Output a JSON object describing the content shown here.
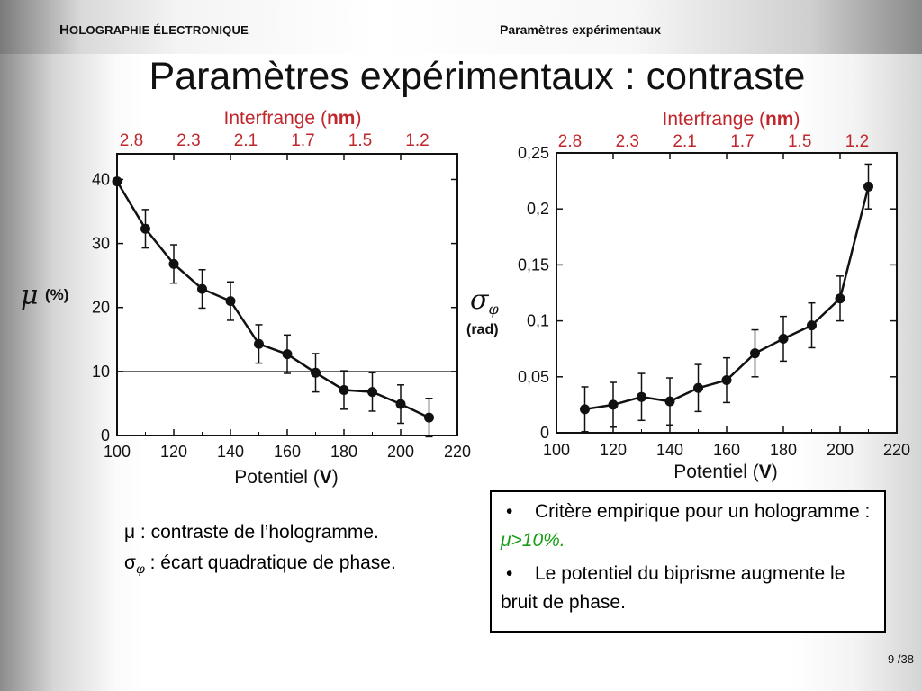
{
  "header": {
    "left_cap": "H",
    "left_rest": "OLOGRAPHIE ÉLECTRONIQUE",
    "right": "Paramètres expérimentaux"
  },
  "title": "Paramètres expérimentaux : contraste",
  "chart_data": [
    {
      "type": "line",
      "top_axis_title": "Interfrange (nm)",
      "top_axis_title_prefix": "Interfrange (",
      "top_axis_title_bold": "nm",
      "top_axis_title_suffix": ")",
      "top_ticks": [
        "2.8",
        "2.3",
        "2.1",
        "1.7",
        "1.5",
        "1.2"
      ],
      "xlabel": "Potentiel (V)",
      "xlabel_prefix": "Potentiel (",
      "xlabel_bold": "V",
      "xlabel_suffix": ")",
      "ylabel_symbol": "μ",
      "ylabel_unit": "(%)",
      "xlim": [
        100,
        220
      ],
      "ylim": [
        0,
        44
      ],
      "xticks": [
        "100",
        "120",
        "140",
        "160",
        "180",
        "200",
        "220"
      ],
      "yticks": [
        "0",
        "10",
        "20",
        "30",
        "40"
      ],
      "threshold_line": 10,
      "series": [
        {
          "x": [
            100,
            110,
            120,
            130,
            140,
            150,
            160,
            170,
            180,
            190,
            200,
            210
          ],
          "y": [
            39.7,
            32.3,
            26.8,
            22.9,
            21,
            14.3,
            12.7,
            9.8,
            7.1,
            6.8,
            4.9,
            2.8
          ],
          "err": [
            0,
            3,
            3,
            3,
            3,
            3,
            3,
            3,
            3,
            3,
            3,
            3
          ]
        }
      ]
    },
    {
      "type": "line",
      "top_axis_title": "Interfrange (nm)",
      "top_axis_title_prefix": "Interfrange (",
      "top_axis_title_bold": "nm",
      "top_axis_title_suffix": ")",
      "top_ticks": [
        "2.8",
        "2.3",
        "2.1",
        "1.7",
        "1.5",
        "1.2"
      ],
      "xlabel": "Potentiel (V)",
      "xlabel_prefix": "Potentiel (",
      "xlabel_bold": "V",
      "xlabel_suffix": ")",
      "ylabel_symbol": "σ",
      "ylabel_sub": "φ",
      "ylabel_unit": "(rad)",
      "xlim": [
        100,
        220
      ],
      "ylim": [
        0,
        0.25
      ],
      "xticks": [
        "100",
        "120",
        "140",
        "160",
        "180",
        "200",
        "220"
      ],
      "yticks": [
        "0",
        "0,05",
        "0,1",
        "0,15",
        "0,2",
        "0,25"
      ],
      "series": [
        {
          "x": [
            110,
            120,
            130,
            140,
            150,
            160,
            170,
            180,
            190,
            200,
            210
          ],
          "y": [
            0.021,
            0.025,
            0.032,
            0.028,
            0.04,
            0.047,
            0.071,
            0.084,
            0.096,
            0.12,
            0.22
          ],
          "err": [
            0.02,
            0.02,
            0.021,
            0.021,
            0.021,
            0.02,
            0.021,
            0.02,
            0.02,
            0.02,
            0.02
          ]
        }
      ]
    }
  ],
  "notes": {
    "mu_line": "μ : contraste de l’hologramme.",
    "sigma_symbol": "σ",
    "sigma_sub": "φ",
    "sigma_rest": " : écart quadratique de phase."
  },
  "box": {
    "bullet": "•",
    "item1_text": "Critère empirique pour un hologramme : ",
    "item1_highlight": "μ>10%.",
    "item2_text": "Le potentiel du biprisme augmente le bruit de phase."
  },
  "colors": {
    "top_axis_red": "#c0272d",
    "highlight_green": "#1a9e1a"
  },
  "page": {
    "current": "9",
    "sep": " /",
    "total": "38"
  }
}
